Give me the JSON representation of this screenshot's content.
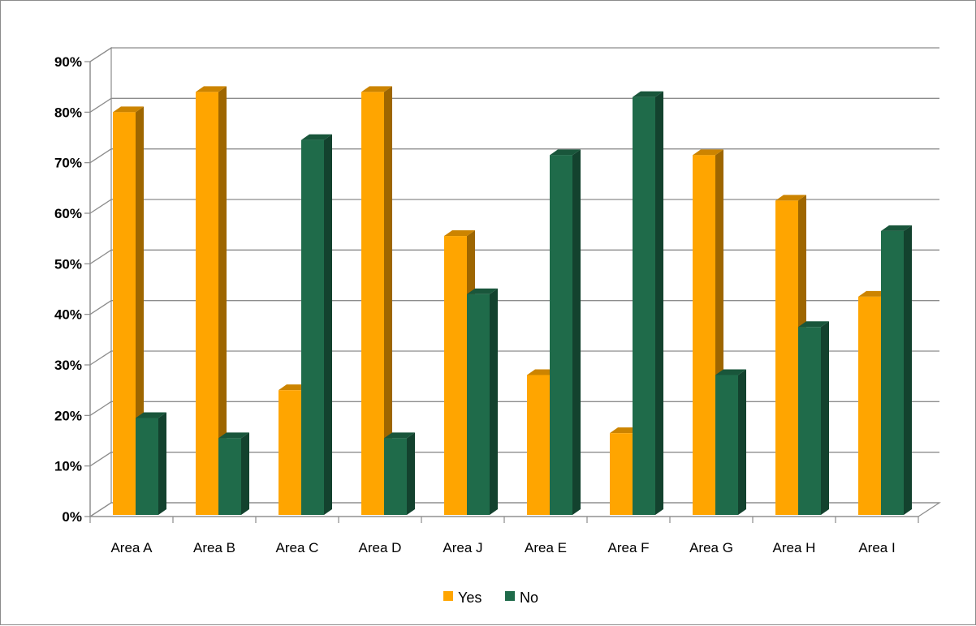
{
  "chart_data": {
    "type": "bar",
    "title": "",
    "xlabel": "",
    "ylabel": "",
    "categories": [
      "Area A",
      "Area B",
      "Area C",
      "Area D",
      "Area J",
      "Area E",
      "Area F",
      "Area G",
      "Area H",
      "Area I"
    ],
    "series": [
      {
        "name": "Yes",
        "color": "#FFA500",
        "values": [
          0.8,
          0.84,
          0.25,
          0.84,
          0.555,
          0.28,
          0.165,
          0.715,
          0.625,
          0.435
        ]
      },
      {
        "name": "No",
        "color": "#1F6B4A",
        "values": [
          0.195,
          0.155,
          0.745,
          0.155,
          0.44,
          0.715,
          0.83,
          0.28,
          0.375,
          0.565
        ]
      }
    ],
    "yticks": [
      {
        "value": 0.0,
        "label": "0%"
      },
      {
        "value": 0.1,
        "label": "10%"
      },
      {
        "value": 0.2,
        "label": "20%"
      },
      {
        "value": 0.3,
        "label": "30%"
      },
      {
        "value": 0.4,
        "label": "40%"
      },
      {
        "value": 0.5,
        "label": "50%"
      },
      {
        "value": 0.6,
        "label": "60%"
      },
      {
        "value": 0.7,
        "label": "70%"
      },
      {
        "value": 0.8,
        "label": "80%"
      },
      {
        "value": 0.9,
        "label": "90%"
      }
    ],
    "ylim": [
      0,
      0.9
    ],
    "grid": true,
    "legend": "bottom",
    "style": "3d-clustered-column"
  }
}
